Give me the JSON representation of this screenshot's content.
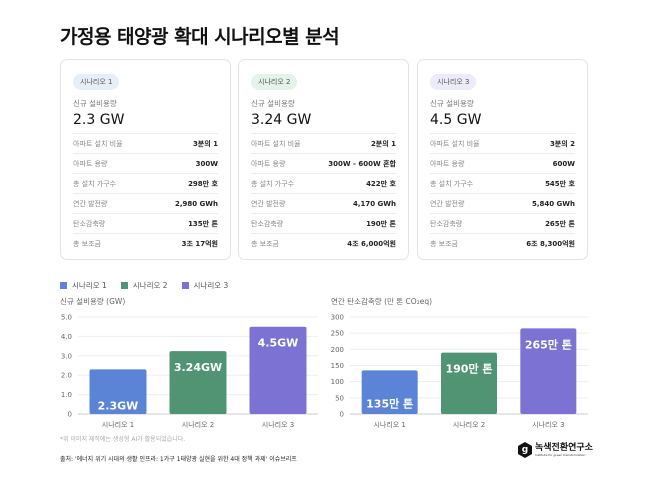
{
  "title": "가정용 태양광 확대 시나리오별 분석",
  "colors": {
    "s1": "#5b84d6",
    "s2": "#519473",
    "s3": "#7b72d4",
    "badge1": "#e8eef9",
    "badge2": "#e4f3ea",
    "badge3": "#ecebf9"
  },
  "scenarios": [
    {
      "badge": "시나리오 1",
      "cap_label": "신규 설비용량",
      "cap_value": "2.3 GW",
      "rows": [
        {
          "k": "아파트 설치 비율",
          "v": "3분의 1"
        },
        {
          "k": "아파트 용량",
          "v": "300W"
        },
        {
          "k": "총 설치 가구수",
          "v": "298만 호"
        },
        {
          "k": "연간 발전량",
          "v": "2,980 GWh"
        },
        {
          "k": "탄소감축량",
          "v": "135만 톤"
        },
        {
          "k": "총 보조금",
          "v": "3조 17억원"
        }
      ]
    },
    {
      "badge": "시나리오 2",
      "cap_label": "신규 설비용량",
      "cap_value": "3.24 GW",
      "rows": [
        {
          "k": "아파트 설치 비율",
          "v": "2분의 1"
        },
        {
          "k": "아파트 용량",
          "v": "300W - 600W 혼합"
        },
        {
          "k": "총 설치 가구수",
          "v": "422만 호"
        },
        {
          "k": "연간 발전량",
          "v": "4,170 GWh"
        },
        {
          "k": "탄소감축량",
          "v": "190만 톤"
        },
        {
          "k": "총 보조금",
          "v": "4조 6,000억원"
        }
      ]
    },
    {
      "badge": "시나리오 3",
      "cap_label": "신규 설비용량",
      "cap_value": "4.5 GW",
      "rows": [
        {
          "k": "아파트 설치 비율",
          "v": "3분의 2"
        },
        {
          "k": "아파트 용량",
          "v": "600W"
        },
        {
          "k": "총 설치 가구수",
          "v": "545만 호"
        },
        {
          "k": "연간 발전량",
          "v": "5,840 GWh"
        },
        {
          "k": "탄소감축량",
          "v": "265만 톤"
        },
        {
          "k": "총 보조금",
          "v": "6조 8,300억원"
        }
      ]
    }
  ],
  "legend": [
    "시나리오 1",
    "시나리오 2",
    "시나리오 3"
  ],
  "chart_data": [
    {
      "type": "bar",
      "title": "신규 설비용량 (GW)",
      "categories": [
        "시나리오 1",
        "시나리오 2",
        "시나리오 3"
      ],
      "values": [
        2.3,
        3.24,
        4.5
      ],
      "data_labels": [
        "2.3GW",
        "3.24GW",
        "4.5GW"
      ],
      "ylim": [
        0,
        5
      ],
      "yticks": [
        "0",
        "1.0",
        "2.0",
        "3.0",
        "4.0",
        "5.0"
      ],
      "grid": true
    },
    {
      "type": "bar",
      "title": "연간 탄소감축량 (만 톤 CO₂eq)",
      "categories": [
        "시나리오 1",
        "시나리오 2",
        "시나리오 3"
      ],
      "values": [
        135,
        190,
        265
      ],
      "data_labels": [
        "135만 톤",
        "190만 톤",
        "265만 톤"
      ],
      "ylim": [
        0,
        300
      ],
      "yticks": [
        "0",
        "50",
        "100",
        "150",
        "200",
        "250",
        "300"
      ],
      "grid": true
    }
  ],
  "note": "*위 이미지 제작에는 생성형 AI가 활용되었습니다.",
  "source": "출처: '에너지 위기 시대의 생활 인프라: 1가구 1태양광 실현을 위한 4대 정책 과제' 이슈브리프",
  "logo": {
    "mark": "g",
    "name": "녹색전환연구소",
    "sub": "Institute for green transformation"
  }
}
